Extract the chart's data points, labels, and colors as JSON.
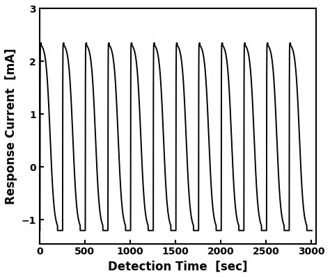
{
  "title": "",
  "xlabel": "Detection Time  [sec]",
  "ylabel": "Response Current  [mA]",
  "xlim": [
    0,
    3050
  ],
  "ylim": [
    -1.45,
    3.0
  ],
  "xticks": [
    0,
    500,
    1000,
    1500,
    2000,
    2500,
    3000
  ],
  "yticks": [
    -1,
    0,
    1,
    2,
    3
  ],
  "num_cycles": 12,
  "period": 250,
  "peak_value": 2.35,
  "trough_value": -1.2,
  "line_color": "#000000",
  "line_width": 1.4,
  "bg_color": "#ffffff",
  "xlabel_fontsize": 12,
  "ylabel_fontsize": 12,
  "tick_fontsize": 10,
  "xlabel_fontweight": "bold",
  "ylabel_fontweight": "bold",
  "tick_fontweight": "bold"
}
